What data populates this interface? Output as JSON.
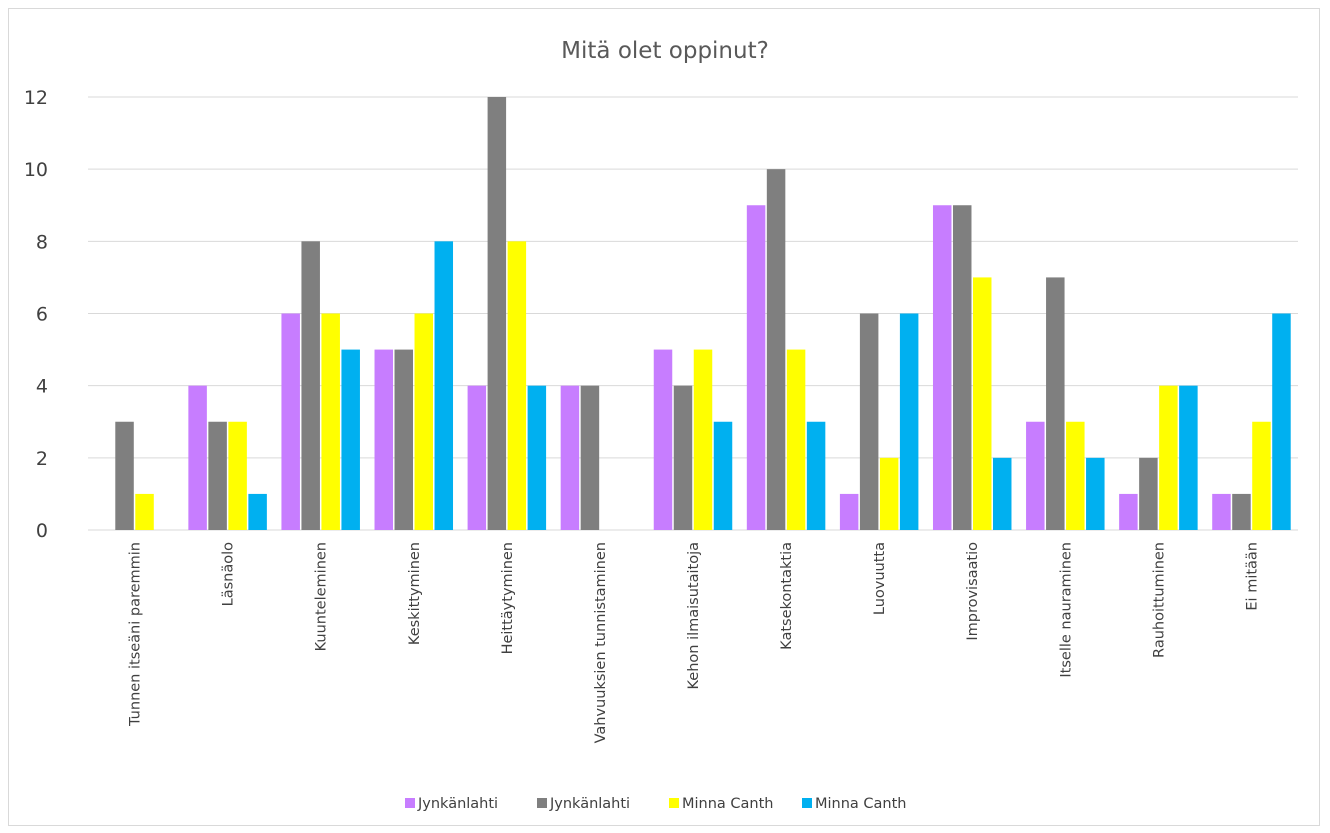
{
  "chart_data": {
    "type": "bar",
    "title": "Mitä olet oppinut?",
    "xlabel": "",
    "ylabel": "",
    "ylim": [
      0,
      12
    ],
    "yticks": [
      "0",
      "2",
      "4",
      "6",
      "8",
      "10",
      "12"
    ],
    "grid": true,
    "legend_position": "bottom",
    "categories": [
      "Tunnen itseäni paremmin",
      "Läsnäolo",
      "Kuunteleminen",
      "Keskittyminen",
      "Heittäytyminen",
      "Vahvuuksien tunnistaminen",
      "Kehon ilmaisutaitoja",
      "Katsekontaktia",
      "Luovuutta",
      "Improvisaatio",
      "Itselle nauraminen",
      "Rauhoittuminen",
      "Ei mitään"
    ],
    "series": [
      {
        "name": "Jynkänlahti",
        "color": "#c77dff",
        "values": [
          0,
          4,
          6,
          5,
          4,
          4,
          5,
          9,
          1,
          9,
          3,
          1,
          1
        ]
      },
      {
        "name": "Jynkänlahti",
        "color": "#7f7f7f",
        "values": [
          3,
          3,
          8,
          5,
          12,
          4,
          4,
          10,
          6,
          9,
          7,
          2,
          1
        ]
      },
      {
        "name": "Minna Canth",
        "color": "#ffff00",
        "values": [
          1,
          3,
          6,
          6,
          8,
          0,
          5,
          5,
          2,
          7,
          3,
          4,
          3
        ]
      },
      {
        "name": "Minna Canth",
        "color": "#00b0f0",
        "values": [
          0,
          1,
          5,
          8,
          4,
          0,
          3,
          3,
          6,
          2,
          2,
          4,
          6
        ]
      }
    ]
  }
}
